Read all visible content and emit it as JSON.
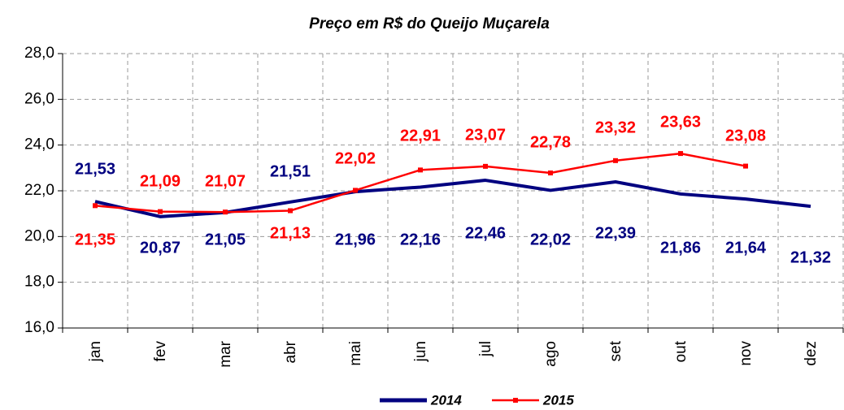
{
  "chart_data": {
    "type": "line",
    "title": "Preço em R$ do Queijo Muçarela",
    "categories": [
      "jan",
      "fev",
      "mar",
      "abr",
      "mai",
      "jun",
      "jul",
      "ago",
      "set",
      "out",
      "nov",
      "dez"
    ],
    "series": [
      {
        "name": "2014",
        "color": "#000080",
        "values": [
          21.53,
          20.87,
          21.05,
          21.51,
          21.96,
          22.16,
          22.46,
          22.02,
          22.39,
          21.86,
          21.64,
          21.32
        ],
        "value_labels": [
          "21,53",
          "20,87",
          "21,05",
          "21,51",
          "21,96",
          "22,16",
          "22,46",
          "22,02",
          "22,39",
          "21,86",
          "21,64",
          "21,32"
        ]
      },
      {
        "name": "2015",
        "color": "#ff0000",
        "values": [
          21.35,
          21.09,
          21.07,
          21.13,
          22.02,
          22.91,
          23.07,
          22.78,
          23.32,
          23.63,
          23.08,
          null
        ],
        "value_labels": [
          "21,35",
          "21,09",
          "21,07",
          "21,13",
          "22,02",
          "22,91",
          "23,07",
          "22,78",
          "23,32",
          "23,63",
          "23,08",
          null
        ]
      }
    ],
    "ylim": [
      16,
      28
    ],
    "yticks": [
      {
        "value": 16,
        "label": "16,0"
      },
      {
        "value": 18,
        "label": "18,0"
      },
      {
        "value": 20,
        "label": "20,0"
      },
      {
        "value": 22,
        "label": "22,0"
      },
      {
        "value": 24,
        "label": "24,0"
      },
      {
        "value": 26,
        "label": "26,0"
      },
      {
        "value": 28,
        "label": "28,0"
      }
    ],
    "grid": true,
    "legend": "bottom"
  }
}
